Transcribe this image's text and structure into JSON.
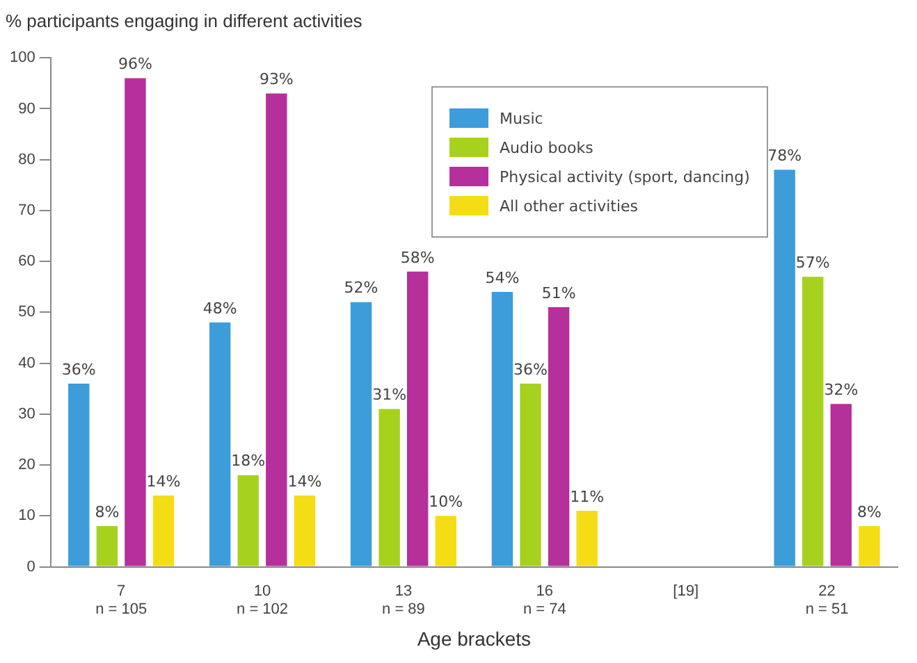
{
  "chart_data": {
    "type": "bar",
    "ylabel": "% participants engaging in different activities",
    "xlabel": "Age brackets",
    "categories": [
      "7\nn = 105",
      "10\nn = 102",
      "13\nn = 89",
      "16\nn = 74",
      "[19]",
      "22\nn = 51"
    ],
    "series": [
      {
        "name": "Music",
        "color": "#3d9ddb",
        "values": [
          36,
          48,
          52,
          54,
          null,
          78
        ],
        "value_labels": [
          "36%",
          "48%",
          "52%",
          "54%",
          null,
          "78%"
        ]
      },
      {
        "name": "Audio books",
        "color": "#a6d21f",
        "values": [
          8,
          18,
          31,
          36,
          null,
          57
        ],
        "value_labels": [
          "8%",
          "18%",
          "31%",
          "36%",
          null,
          "57%"
        ]
      },
      {
        "name": "Physical activity (sport, dancing)",
        "color": "#b5309a",
        "values": [
          96,
          93,
          58,
          51,
          null,
          32
        ],
        "value_labels": [
          "96%",
          "93%",
          "58%",
          "51%",
          null,
          "32%"
        ]
      },
      {
        "name": "All other activities",
        "color": "#f5dd16",
        "values": [
          14,
          14,
          10,
          11,
          null,
          8
        ],
        "value_labels": [
          "14%",
          "14%",
          "10%",
          "11%",
          null,
          "8%"
        ]
      }
    ],
    "ylim": [
      0,
      100
    ],
    "yticks": [
      0,
      10,
      20,
      30,
      40,
      50,
      60,
      70,
      80,
      90,
      100
    ],
    "grid": false,
    "legend": "top right"
  }
}
